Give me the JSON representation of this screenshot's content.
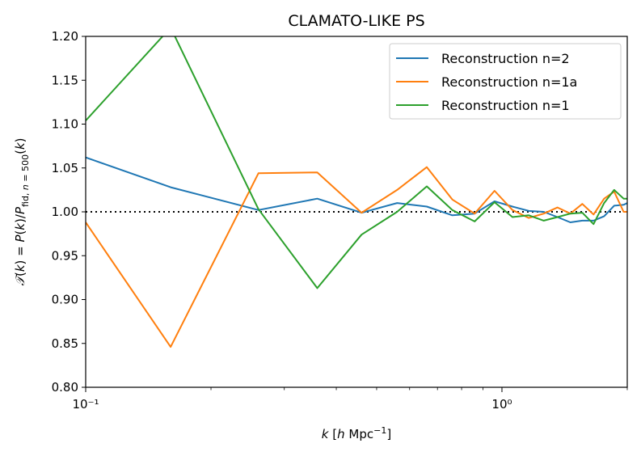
{
  "chart_data": {
    "type": "line",
    "title": "CLAMATO-LIKE PS",
    "xlabel": "k [h Mpc⁻¹]",
    "ylabel": "𝒯(k) = P(k)/P_fid,n=500(k)",
    "xscale": "log",
    "xlim": [
      0.1,
      2.0
    ],
    "ylim": [
      0.8,
      1.2
    ],
    "x_tick_labels": [
      "10⁻¹",
      "10⁰"
    ],
    "y_tick_labels": [
      "0.80",
      "0.85",
      "0.90",
      "0.95",
      "1.00",
      "1.05",
      "1.10",
      "1.15",
      "1.20"
    ],
    "reference_line": {
      "y": 1.0,
      "style": "dotted",
      "color": "#000000"
    },
    "legend": {
      "position": "top-right"
    },
    "series": [
      {
        "name": "Reconstruction n=2",
        "color": "#1f77b4",
        "x": [
          0.1,
          0.16,
          0.26,
          0.36,
          0.46,
          0.56,
          0.66,
          0.76,
          0.86,
          0.96,
          1.06,
          1.16,
          1.26,
          1.36,
          1.46,
          1.56,
          1.66,
          1.76,
          1.86,
          1.96,
          2.0
        ],
        "y": [
          1.062,
          1.028,
          1.002,
          1.015,
          0.999,
          1.01,
          1.006,
          0.996,
          0.998,
          1.012,
          1.006,
          1.001,
          1.0,
          0.994,
          0.988,
          0.99,
          0.99,
          0.995,
          1.007,
          1.008,
          1.01
        ]
      },
      {
        "name": "Reconstruction n=1a",
        "color": "#ff7f0e",
        "x": [
          0.1,
          0.16,
          0.26,
          0.36,
          0.46,
          0.56,
          0.66,
          0.76,
          0.86,
          0.96,
          1.06,
          1.16,
          1.26,
          1.36,
          1.46,
          1.56,
          1.66,
          1.76,
          1.86,
          1.96,
          2.0
        ],
        "y": [
          0.988,
          0.846,
          1.044,
          1.045,
          0.999,
          1.025,
          1.051,
          1.014,
          0.998,
          1.024,
          1.002,
          0.993,
          0.998,
          1.005,
          0.998,
          1.009,
          0.997,
          1.015,
          1.023,
          1.0,
          1.0
        ]
      },
      {
        "name": "Reconstruction n=1",
        "color": "#2ca02c",
        "x": [
          0.1,
          0.16,
          0.26,
          0.36,
          0.46,
          0.56,
          0.66,
          0.76,
          0.86,
          0.96,
          1.06,
          1.16,
          1.26,
          1.36,
          1.46,
          1.56,
          1.66,
          1.76,
          1.86,
          1.96,
          2.0
        ],
        "y": [
          1.104,
          1.21,
          1.003,
          0.913,
          0.974,
          1.0,
          1.029,
          1.002,
          0.989,
          1.011,
          0.994,
          0.996,
          0.99,
          0.994,
          0.998,
          0.999,
          0.986,
          1.01,
          1.025,
          1.015,
          1.015
        ]
      }
    ]
  }
}
